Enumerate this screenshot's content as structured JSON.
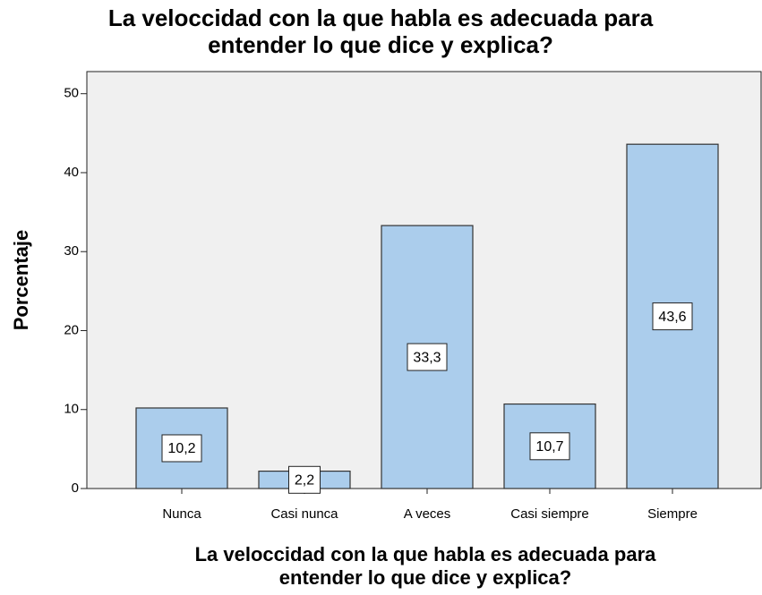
{
  "chart_data": {
    "type": "bar",
    "title": [
      "La veloccidad con la que habla es adecuada para",
      "entender lo que dice y explica?"
    ],
    "xlabel": [
      "La veloccidad con la que habla es adecuada para",
      "entender lo que dice y explica?"
    ],
    "ylabel": "Porcentaje",
    "categories": [
      "Nunca",
      "Casi nunca",
      "A veces",
      "Casi siempre",
      "Siempre"
    ],
    "values": [
      10.2,
      2.2,
      33.3,
      10.7,
      43.6
    ],
    "value_labels": [
      "10,2",
      "2,2",
      "33,3",
      "10,7",
      "43,6"
    ],
    "color": "#abcdec",
    "ylim": [
      0,
      52.8
    ],
    "yticks": [
      0,
      10,
      20,
      30,
      40,
      50
    ],
    "grid": false
  }
}
